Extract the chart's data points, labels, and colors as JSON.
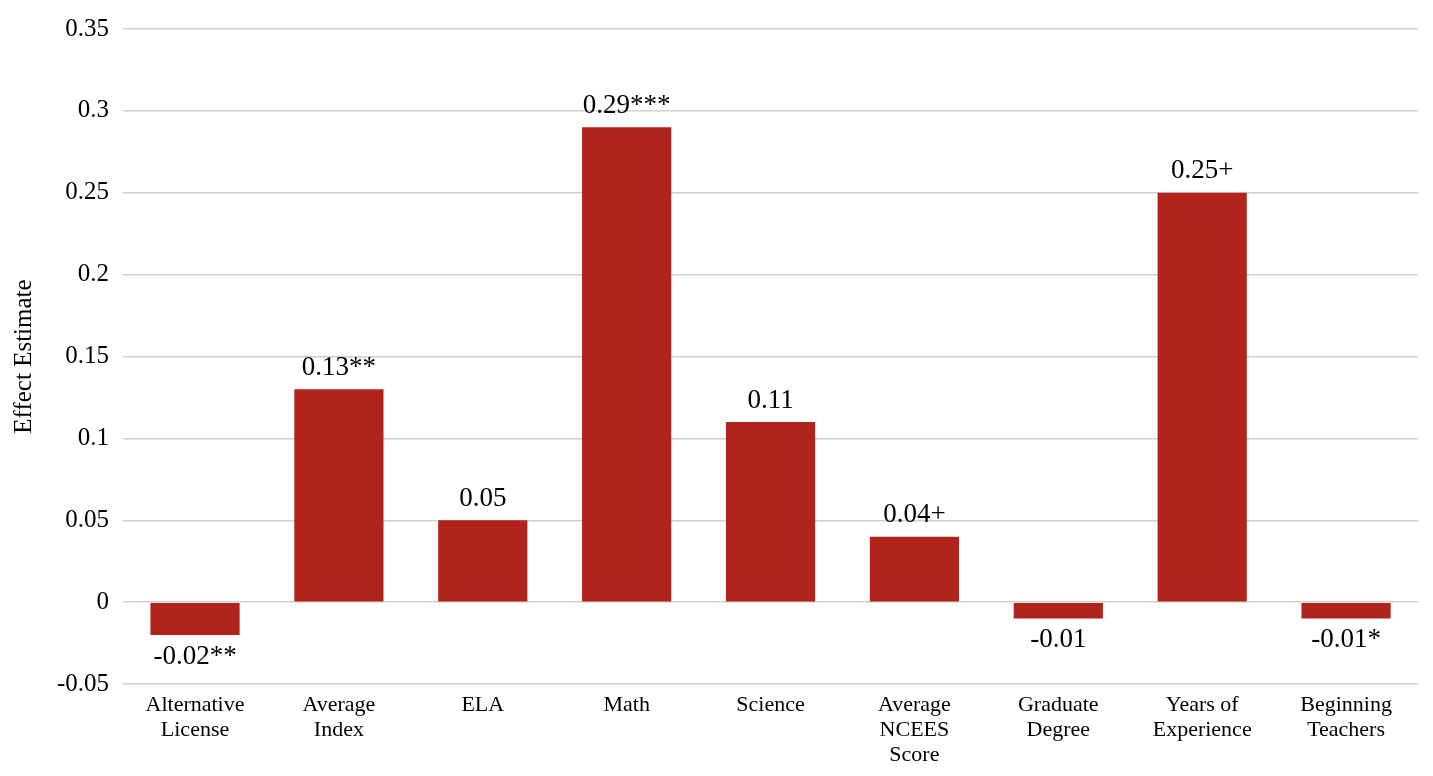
{
  "chart_data": {
    "type": "bar",
    "ylabel": "Effect Estimate",
    "categories": [
      "Alternative License",
      "Average Index",
      "ELA",
      "Math",
      "Science",
      "Average NCEES Score",
      "Graduate Degree",
      "Years of Experience",
      "Beginning Teachers"
    ],
    "values": [
      -0.02,
      0.13,
      0.05,
      0.29,
      0.11,
      0.04,
      -0.01,
      0.25,
      -0.01
    ],
    "value_labels": [
      "-0.02**",
      "0.13**",
      "0.05",
      "0.29***",
      "0.11",
      "0.04+",
      "-0.01",
      "0.25+",
      "-0.01*"
    ],
    "color": "#b0241b",
    "ylim": [
      -0.05,
      0.35
    ],
    "yticks": [
      -0.05,
      0,
      0.05,
      0.1,
      0.15,
      0.2,
      0.25,
      0.3,
      0.35
    ],
    "grid": "y",
    "legend": false
  }
}
